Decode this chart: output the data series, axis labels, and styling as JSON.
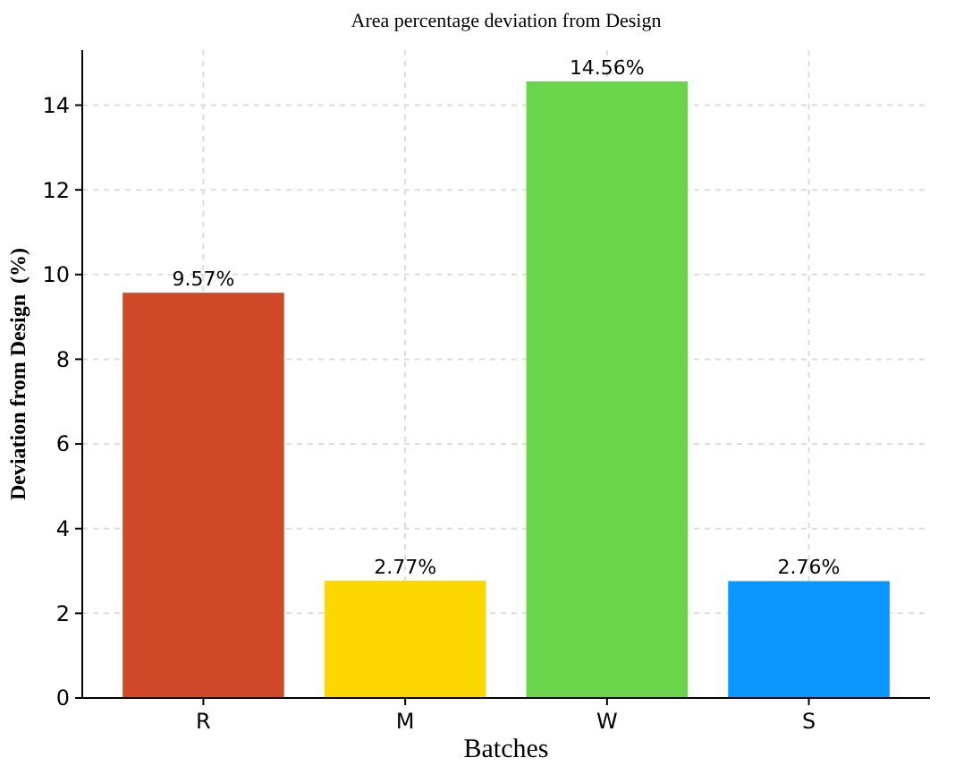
{
  "chart_data": {
    "type": "bar",
    "title": "Area percentage deviation from Design",
    "xlabel": "Batches",
    "ylabel": "Deviation from Design  (%)",
    "categories": [
      "R",
      "M",
      "W",
      "S"
    ],
    "values": [
      9.57,
      2.77,
      14.56,
      2.76
    ],
    "value_labels": [
      "9.57%",
      "2.77%",
      "14.56%",
      "2.76%"
    ],
    "colors": [
      "#d04a2a",
      "#ffd700",
      "#6ad44a",
      "#0b96ff"
    ],
    "ylim": [
      0,
      15.3
    ],
    "yticks": [
      0,
      2,
      4,
      6,
      8,
      10,
      12,
      14
    ],
    "grid": true
  }
}
